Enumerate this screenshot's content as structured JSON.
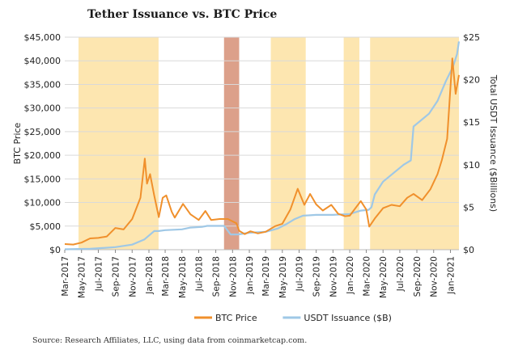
{
  "title": "Tether Issuance vs. BTC Price",
  "source": "Source: Research Affiliates, LLC, using data from coinmarketcap.com.",
  "chart_data": {
    "type": "line",
    "title": "Tether Issuance vs. BTC Price",
    "ylabel": "BTC Price",
    "y2label": "Total USDT Issuance ($Billions)",
    "ylim": [
      0,
      45000
    ],
    "y2lim": [
      0,
      25
    ],
    "yticks": [
      "$0",
      "$5,000",
      "$10,000",
      "$15,000",
      "$20,000",
      "$25,000",
      "$30,000",
      "$35,000",
      "$40,000",
      "$45,000"
    ],
    "y2ticks": [
      "$0",
      "$5",
      "$10",
      "$15",
      "$20",
      "$25"
    ],
    "xticks": [
      "Mar-2017",
      "May-2017",
      "Jul-2017",
      "Sep-2017",
      "Nov-2017",
      "Jan-2018",
      "Mar-2018",
      "May-2018",
      "Jul-2018",
      "Sep-2018",
      "Nov-2018",
      "Jan-2019",
      "Mar-2019",
      "May-2019",
      "Jul-2019",
      "Sep-2019",
      "Nov-2019",
      "Jan-2020",
      "Mar-2020",
      "May-2020",
      "Jul-2020",
      "Sep-2020",
      "Nov-2020",
      "Jan-2021"
    ],
    "x_start": "2017-03",
    "x_end": "2021-02",
    "legend": {
      "placement": "bottom",
      "entries": [
        "BTC Price",
        "USDT Issuance ($B)"
      ]
    },
    "colors": {
      "btc": "#f0902c",
      "usdt": "#9fc8e6",
      "shade_yellow": "#fde6b0",
      "shade_red": "#dca08a"
    },
    "shaded_periods": [
      {
        "start": "2017-04-20",
        "end": "2018-02-05",
        "color": "yellow"
      },
      {
        "start": "2018-10-01",
        "end": "2018-11-25",
        "color": "red"
      },
      {
        "start": "2019-03-20",
        "end": "2019-07-25",
        "color": "yellow"
      },
      {
        "start": "2019-12-10",
        "end": "2020-02-05",
        "color": "yellow"
      },
      {
        "start": "2020-03-15",
        "end": "2021-02-01",
        "color": "yellow"
      }
    ],
    "series": [
      {
        "name": "BTC Price",
        "axis": "left",
        "points": [
          [
            "2017-03-01",
            1200
          ],
          [
            "2017-04-01",
            1100
          ],
          [
            "2017-05-01",
            1500
          ],
          [
            "2017-06-01",
            2400
          ],
          [
            "2017-07-01",
            2500
          ],
          [
            "2017-08-01",
            2800
          ],
          [
            "2017-09-01",
            4600
          ],
          [
            "2017-10-01",
            4300
          ],
          [
            "2017-11-01",
            6500
          ],
          [
            "2017-12-01",
            11000
          ],
          [
            "2017-12-17",
            19300
          ],
          [
            "2017-12-25",
            14000
          ],
          [
            "2018-01-05",
            16000
          ],
          [
            "2018-01-20",
            11500
          ],
          [
            "2018-02-06",
            6900
          ],
          [
            "2018-02-20",
            11000
          ],
          [
            "2018-03-05",
            11500
          ],
          [
            "2018-03-25",
            8000
          ],
          [
            "2018-04-05",
            6800
          ],
          [
            "2018-05-05",
            9700
          ],
          [
            "2018-06-01",
            7500
          ],
          [
            "2018-07-01",
            6300
          ],
          [
            "2018-07-25",
            8200
          ],
          [
            "2018-08-15",
            6300
          ],
          [
            "2018-09-15",
            6500
          ],
          [
            "2018-10-15",
            6500
          ],
          [
            "2018-11-15",
            5600
          ],
          [
            "2018-11-25",
            4000
          ],
          [
            "2018-12-15",
            3300
          ],
          [
            "2019-01-05",
            3900
          ],
          [
            "2019-02-01",
            3450
          ],
          [
            "2019-03-01",
            3800
          ],
          [
            "2019-04-05",
            5000
          ],
          [
            "2019-05-01",
            5500
          ],
          [
            "2019-05-30",
            8500
          ],
          [
            "2019-06-26",
            12900
          ],
          [
            "2019-07-20",
            9500
          ],
          [
            "2019-08-10",
            11800
          ],
          [
            "2019-09-01",
            9600
          ],
          [
            "2019-09-25",
            8300
          ],
          [
            "2019-10-26",
            9500
          ],
          [
            "2019-11-20",
            7600
          ],
          [
            "2019-12-15",
            7100
          ],
          [
            "2020-01-01",
            7200
          ],
          [
            "2020-02-10",
            10300
          ],
          [
            "2020-03-01",
            8500
          ],
          [
            "2020-03-12",
            4900
          ],
          [
            "2020-04-01",
            6600
          ],
          [
            "2020-05-01",
            8800
          ],
          [
            "2020-06-01",
            9500
          ],
          [
            "2020-07-01",
            9200
          ],
          [
            "2020-07-28",
            11000
          ],
          [
            "2020-08-20",
            11800
          ],
          [
            "2020-09-20",
            10500
          ],
          [
            "2020-10-20",
            12800
          ],
          [
            "2020-11-15",
            16000
          ],
          [
            "2020-12-01",
            19000
          ],
          [
            "2020-12-20",
            23500
          ],
          [
            "2021-01-08",
            40500
          ],
          [
            "2021-01-20",
            33000
          ],
          [
            "2021-02-01",
            37000
          ]
        ]
      },
      {
        "name": "USDT Issuance ($B)",
        "axis": "right",
        "points": [
          [
            "2017-03-01",
            0.05
          ],
          [
            "2017-06-01",
            0.1
          ],
          [
            "2017-09-01",
            0.3
          ],
          [
            "2017-11-01",
            0.6
          ],
          [
            "2017-12-15",
            1.2
          ],
          [
            "2018-01-20",
            2.2
          ],
          [
            "2018-02-05",
            2.2
          ],
          [
            "2018-03-01",
            2.3
          ],
          [
            "2018-05-01",
            2.4
          ],
          [
            "2018-06-01",
            2.6
          ],
          [
            "2018-07-15",
            2.7
          ],
          [
            "2018-08-01",
            2.8
          ],
          [
            "2018-10-01",
            2.8
          ],
          [
            "2018-10-25",
            1.8
          ],
          [
            "2018-11-20",
            1.8
          ],
          [
            "2019-01-01",
            2.0
          ],
          [
            "2019-03-01",
            2.1
          ],
          [
            "2019-04-15",
            2.5
          ],
          [
            "2019-05-15",
            3.0
          ],
          [
            "2019-06-15",
            3.6
          ],
          [
            "2019-07-15",
            4.0
          ],
          [
            "2019-09-01",
            4.1
          ],
          [
            "2019-11-01",
            4.1
          ],
          [
            "2020-01-01",
            4.2
          ],
          [
            "2020-02-10",
            4.6
          ],
          [
            "2020-03-10",
            4.7
          ],
          [
            "2020-03-20",
            5.0
          ],
          [
            "2020-04-01",
            6.5
          ],
          [
            "2020-05-01",
            8.0
          ],
          [
            "2020-06-15",
            9.2
          ],
          [
            "2020-07-15",
            10.0
          ],
          [
            "2020-08-10",
            10.5
          ],
          [
            "2020-08-20",
            14.5
          ],
          [
            "2020-10-15",
            16.0
          ],
          [
            "2020-11-15",
            17.5
          ],
          [
            "2020-12-15",
            19.8
          ],
          [
            "2021-01-10",
            21.5
          ],
          [
            "2021-01-25",
            23.0
          ],
          [
            "2021-02-01",
            24.5
          ]
        ]
      }
    ]
  }
}
